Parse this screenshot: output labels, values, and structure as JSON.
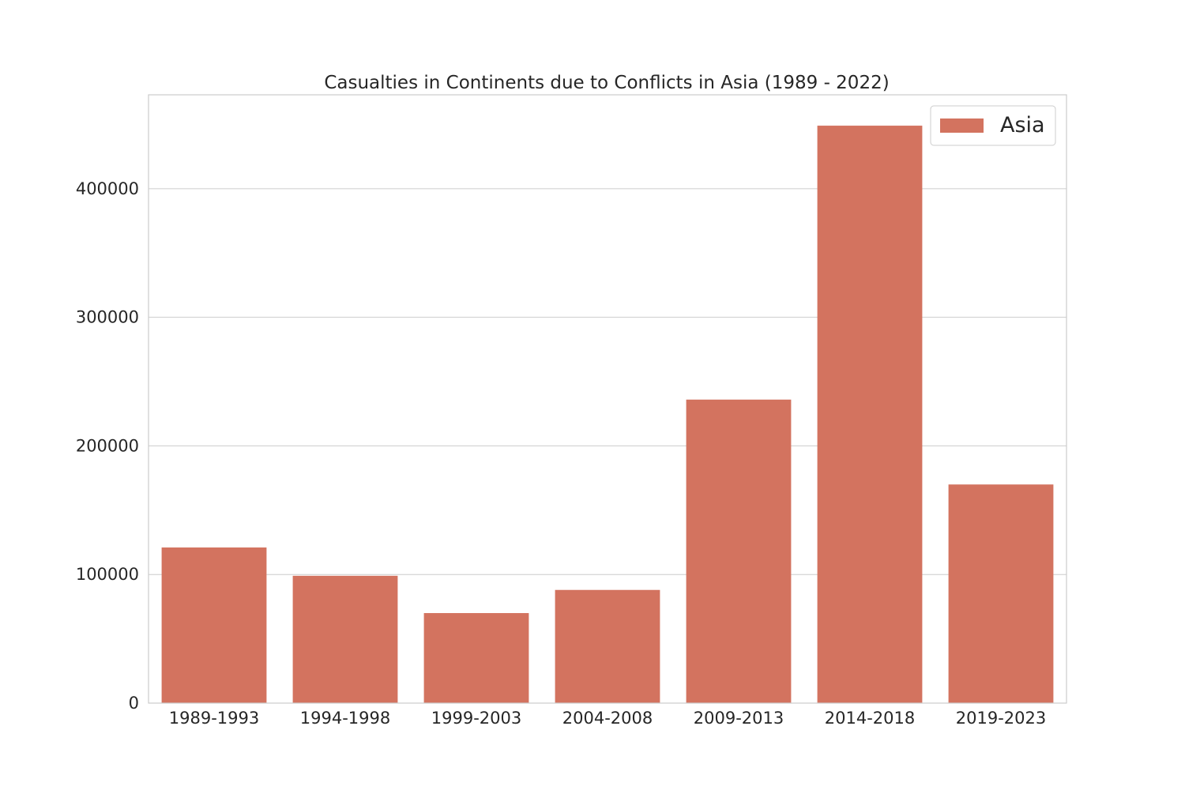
{
  "chart_data": {
    "type": "bar",
    "title": "Casualties in Continents due to Conflicts in Asia (1989 - 2022)",
    "xlabel": "",
    "ylabel": "",
    "categories": [
      "1989-1993",
      "1994-1998",
      "1999-2003",
      "2004-2008",
      "2009-2013",
      "2014-2018",
      "2019-2023"
    ],
    "series": [
      {
        "name": "Asia",
        "values": [
          121000,
          99000,
          70000,
          88000,
          236000,
          449000,
          170000
        ]
      }
    ],
    "ylim": [
      0,
      473000
    ],
    "yticks": [
      0,
      100000,
      200000,
      300000,
      400000
    ],
    "ytick_labels": [
      "0",
      "100000",
      "200000",
      "300000",
      "400000"
    ],
    "grid": "horizontal",
    "legend_position": "top-right",
    "colors": {
      "bar": "#d3735f",
      "grid": "#cccccc",
      "text": "#262626"
    }
  }
}
